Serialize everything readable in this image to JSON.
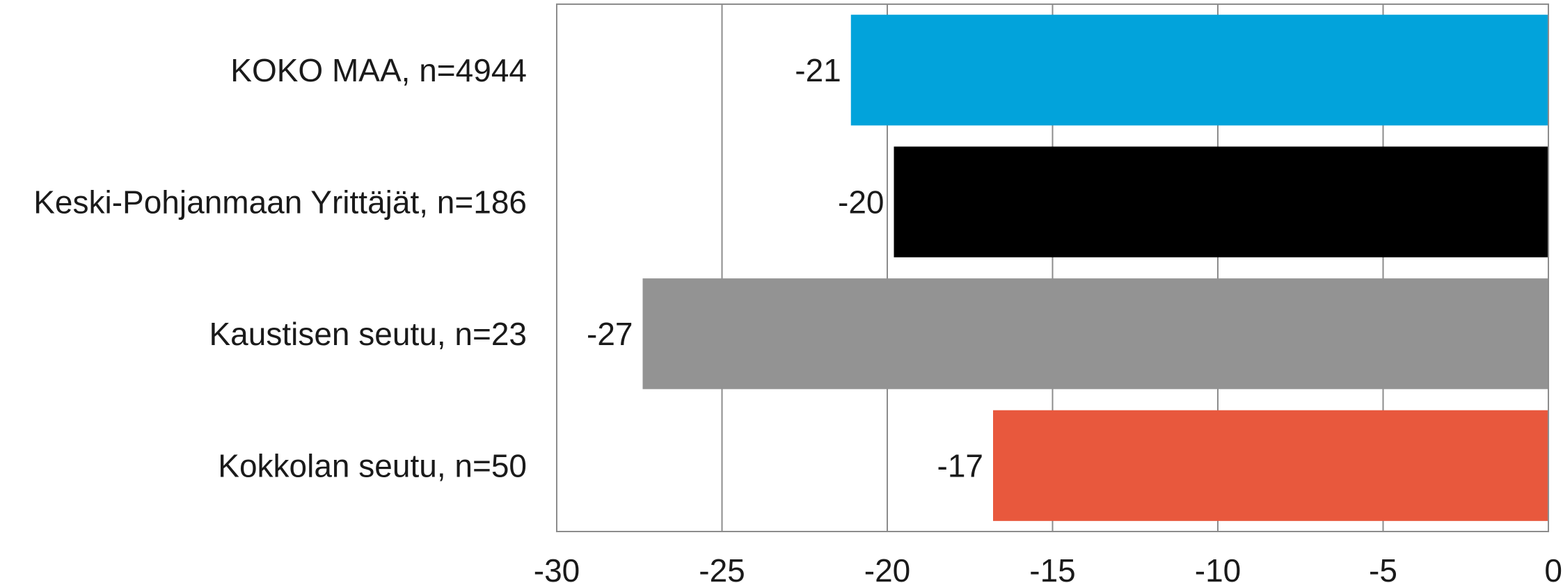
{
  "chart_data": {
    "type": "bar",
    "orientation": "horizontal",
    "categories": [
      "KOKO MAA, n=4944",
      "Keski-Pohjanmaan Yrittäjät, n=186",
      "Kaustisen seutu, n=23",
      "Kokkolan seutu, n=50"
    ],
    "values": [
      -21.1,
      -19.8,
      -27.4,
      -16.8
    ],
    "data_labels": [
      "-21",
      "-20",
      "-27",
      "-17"
    ],
    "colors": [
      "#02A3DB",
      "#000000",
      "#939393",
      "#E8583D"
    ],
    "xlim": [
      -30,
      0
    ],
    "xticks": [
      -30,
      -25,
      -20,
      -15,
      -10,
      -5,
      0
    ],
    "xtick_labels": [
      "-30",
      "-25",
      "-20",
      "-15",
      "-10",
      "-5",
      "0"
    ],
    "grid": "vertical",
    "legend": "none",
    "title": "",
    "xlabel": "",
    "ylabel": ""
  }
}
